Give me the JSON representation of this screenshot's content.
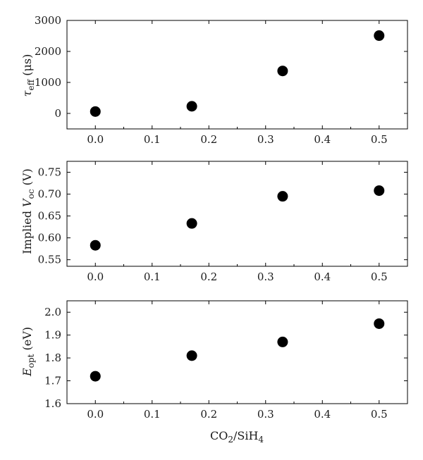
{
  "chart_data": [
    {
      "type": "scatter",
      "panel": "top",
      "x": [
        0.0,
        0.17,
        0.33,
        0.5
      ],
      "y": [
        60,
        230,
        1370,
        2510
      ],
      "xlim": [
        -0.05,
        0.55
      ],
      "ylim": [
        -500,
        3000
      ],
      "xticks": [
        "0.0",
        "0.1",
        "0.2",
        "0.3",
        "0.4",
        "0.5"
      ],
      "yticks": [
        "0",
        "1000",
        "2000",
        "3000"
      ],
      "ylabel": {
        "main": "τ",
        "sub": "eff",
        "rest": " (μs)"
      },
      "grid": false,
      "marker_color": "#000000"
    },
    {
      "type": "scatter",
      "panel": "middle",
      "x": [
        0.0,
        0.17,
        0.33,
        0.5
      ],
      "y": [
        0.583,
        0.633,
        0.695,
        0.708
      ],
      "xlim": [
        -0.05,
        0.55
      ],
      "ylim": [
        0.535,
        0.775
      ],
      "xticks": [
        "0.0",
        "0.1",
        "0.2",
        "0.3",
        "0.4",
        "0.5"
      ],
      "yticks": [
        "0.55",
        "0.60",
        "0.65",
        "0.70",
        "0.75"
      ],
      "ylabel": {
        "pre": "Implied ",
        "main": "V",
        "sub": "oc",
        "rest": " (V)"
      },
      "grid": false,
      "marker_color": "#000000"
    },
    {
      "type": "scatter",
      "panel": "bottom",
      "x": [
        0.0,
        0.17,
        0.33,
        0.5
      ],
      "y": [
        1.72,
        1.81,
        1.87,
        1.95
      ],
      "xlim": [
        -0.05,
        0.55
      ],
      "ylim": [
        1.6,
        2.05
      ],
      "xticks": [
        "0.0",
        "0.1",
        "0.2",
        "0.3",
        "0.4",
        "0.5"
      ],
      "yticks": [
        "1.6",
        "1.7",
        "1.8",
        "1.9",
        "2.0"
      ],
      "ylabel": {
        "main": "E",
        "sub": "opt",
        "rest": " (eV)"
      },
      "grid": false,
      "marker_color": "#000000"
    }
  ],
  "xlabel": {
    "part1": "CO",
    "sub1": "2",
    "part2": "/SiH",
    "sub2": "4"
  }
}
